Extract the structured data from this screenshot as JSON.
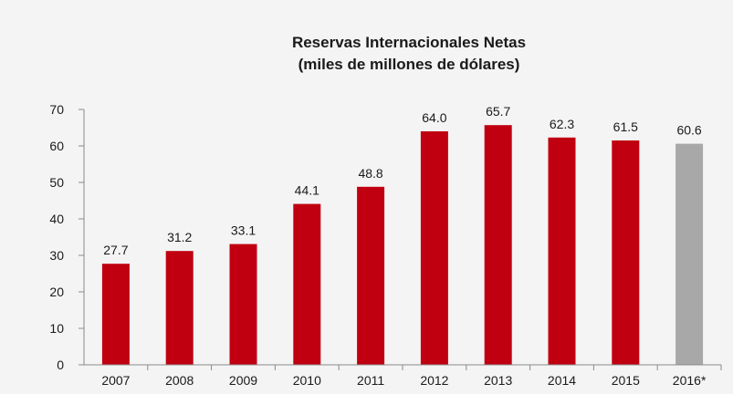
{
  "chart_data": {
    "type": "bar",
    "title": "Reservas Internacionales Netas",
    "subtitle": "(miles de millones de dólares)",
    "xlabel": "",
    "ylabel": "",
    "categories": [
      "2007",
      "2008",
      "2009",
      "2010",
      "2011",
      "2012",
      "2013",
      "2014",
      "2015",
      "2016*"
    ],
    "values": [
      27.7,
      31.2,
      33.1,
      44.1,
      48.8,
      64.0,
      65.7,
      62.3,
      61.5,
      60.6
    ],
    "data_labels": [
      "27.7",
      "31.2",
      "33.1",
      "44.1",
      "48.8",
      "64.0",
      "65.7",
      "62.3",
      "61.5",
      "60.6"
    ],
    "ylim": [
      0,
      70
    ],
    "yticks": [
      0,
      10,
      20,
      30,
      40,
      50,
      60,
      70
    ],
    "grid": false,
    "legend": "none",
    "colors": {
      "bar": "#c00010",
      "bar_highlight": "#a8a8a8",
      "highlight_category": "2016*",
      "axis": "#8a8a8a",
      "text": "#1a1a1a",
      "background": "#f4f4f4"
    }
  }
}
